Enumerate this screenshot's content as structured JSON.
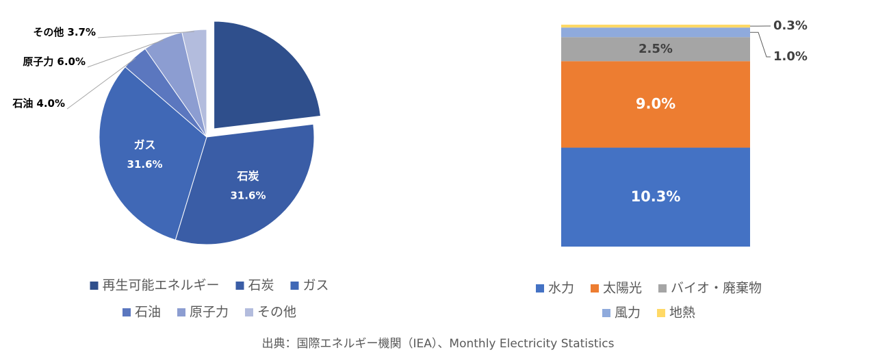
{
  "chart_data": [
    {
      "type": "pie",
      "categories": [
        "再生可能エネルギー",
        "石炭",
        "ガス",
        "石油",
        "原子力",
        "その他"
      ],
      "values": [
        23.1,
        31.6,
        31.6,
        4.0,
        6.0,
        3.7
      ],
      "value_labels": [
        null,
        "31.6%",
        "31.6%",
        "4.0%",
        "6.0%",
        "3.7%"
      ],
      "colors": [
        "#2f4f8c",
        "#3a5da6",
        "#4068b6",
        "#5b77bf",
        "#8c9dd1",
        "#b3bcdd"
      ],
      "legend": "bottom"
    },
    {
      "type": "stacked_bar",
      "series": [
        {
          "name": "水力",
          "color": "#4472c4",
          "values": [
            10.3
          ],
          "value_labels": [
            "10.3%"
          ]
        },
        {
          "name": "太陽光",
          "color": "#ed7d31",
          "values": [
            9.0
          ],
          "value_labels": [
            "9.0%"
          ]
        },
        {
          "name": "バイオ・廃棄物",
          "color": "#a5a5a5",
          "values": [
            2.5
          ],
          "value_labels": [
            "2.5%"
          ]
        },
        {
          "name": "風力",
          "color": "#8faadc",
          "values": [
            1.0
          ],
          "value_labels": [
            "1.0%"
          ]
        },
        {
          "name": "地熱",
          "color": "#ffd966",
          "values": [
            0.3
          ],
          "value_labels": [
            "0.3%"
          ]
        }
      ],
      "legend": "bottom"
    }
  ],
  "source": "出典：国際エネルギー機関（IEA）、Monthly  Electricity Statistics"
}
